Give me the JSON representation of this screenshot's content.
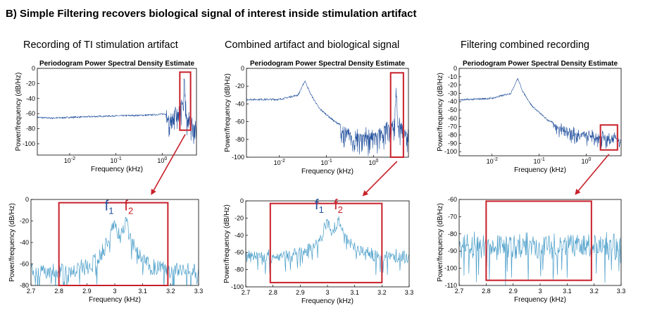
{
  "figure": {
    "heading": "B) Simple Filtering recovers biological signal of interest inside stimulation artifact"
  },
  "columns": [
    {
      "title": "Recording of TI stimulation artifact"
    },
    {
      "title": "Combined artifact and biological signal"
    },
    {
      "title": "Filtering combined recording"
    }
  ],
  "chart_data": [
    {
      "type": "line",
      "panel": "top-1",
      "title": "Periodogram Power Spectral Density Estimate",
      "xlabel": "Frequency (kHz)",
      "ylabel": "Power/frequency (dB/Hz)",
      "xscale": "log",
      "xticks": [
        {
          "v": 0.01,
          "b": "10",
          "e": "-2"
        },
        {
          "v": 0.1,
          "b": "10",
          "e": "-1"
        },
        {
          "v": 1,
          "b": "10",
          "e": "0"
        }
      ],
      "xlim": [
        0.002,
        5.5
      ],
      "yticks": [
        0,
        -20,
        -40,
        -60,
        -80,
        -100
      ],
      "ylim": [
        -115,
        0
      ],
      "series": [
        {
          "color": "#1f4e9c",
          "points": [
            [
              0.002,
              -65
            ],
            [
              0.004,
              -66
            ],
            [
              0.01,
              -65
            ],
            [
              0.03,
              -64
            ],
            [
              0.1,
              -63
            ],
            [
              0.5,
              -62
            ],
            [
              1.5,
              -60
            ],
            [
              2.8,
              -40
            ],
            [
              3.0,
              -12
            ],
            [
              3.1,
              -30
            ],
            [
              3.4,
              -62
            ],
            [
              5.5,
              -68
            ]
          ],
          "noise": {
            "from": 1.2,
            "amp": 35
          }
        }
      ],
      "highlight": {
        "x": [
          2.4,
          4.1
        ],
        "y": [
          -5,
          -82
        ],
        "color": "#c8202a"
      }
    },
    {
      "type": "line",
      "panel": "top-2",
      "title": "Periodogram Power Spectral Density Estimate",
      "xlabel": "Frequency (kHz)",
      "ylabel": "Power/frequency (dB/Hz)",
      "xscale": "log",
      "xticks": [
        {
          "v": 0.01,
          "b": "10",
          "e": "-2"
        },
        {
          "v": 0.1,
          "b": "10",
          "e": "-1"
        },
        {
          "v": 1,
          "b": "10",
          "e": "0"
        }
      ],
      "xlim": [
        0.002,
        5.5
      ],
      "yticks": [
        0,
        -20,
        -40,
        -60,
        -80,
        -100
      ],
      "ylim": [
        -100,
        0
      ],
      "series": [
        {
          "color": "#1f4e9c",
          "points": [
            [
              0.002,
              -35
            ],
            [
              0.01,
              -35
            ],
            [
              0.025,
              -30
            ],
            [
              0.035,
              -14
            ],
            [
              0.045,
              -28
            ],
            [
              0.07,
              -45
            ],
            [
              0.15,
              -60
            ],
            [
              0.4,
              -72
            ],
            [
              1.0,
              -72
            ],
            [
              2.8,
              -55
            ],
            [
              3.0,
              -12
            ],
            [
              3.2,
              -55
            ],
            [
              5.5,
              -72
            ]
          ],
          "noise": {
            "from": 0.2,
            "amp": 28
          }
        }
      ],
      "highlight": {
        "x": [
          2.3,
          4.3
        ],
        "y": [
          -5,
          -100
        ],
        "color": "#c8202a"
      }
    },
    {
      "type": "line",
      "panel": "top-3",
      "title": "Periodogram Power Spectral Density Estimate",
      "xlabel": "Frequency (kHz)",
      "ylabel": "Power/frequency (dB/Hz)",
      "xscale": "log",
      "xticks": [
        {
          "v": 0.01,
          "b": "10",
          "e": "-2"
        },
        {
          "v": 0.1,
          "b": "10",
          "e": "-1"
        },
        {
          "v": 1,
          "b": "10",
          "e": "0"
        }
      ],
      "xlim": [
        0.002,
        5.5
      ],
      "yticks": [
        0,
        -10,
        -20,
        -30,
        -40,
        -50,
        -60,
        -70,
        -80,
        -90,
        -100
      ],
      "ylim": [
        -105,
        0
      ],
      "series": [
        {
          "color": "#1f4e9c",
          "points": [
            [
              0.002,
              -38
            ],
            [
              0.01,
              -36
            ],
            [
              0.025,
              -30
            ],
            [
              0.035,
              -12
            ],
            [
              0.045,
              -28
            ],
            [
              0.07,
              -45
            ],
            [
              0.15,
              -62
            ],
            [
              0.4,
              -74
            ],
            [
              1.0,
              -78
            ],
            [
              3.0,
              -82
            ],
            [
              5.5,
              -85
            ]
          ],
          "noise": {
            "from": 0.2,
            "amp": 16
          }
        }
      ],
      "highlight": {
        "x": [
          2.0,
          4.6
        ],
        "y": [
          -68,
          -98
        ],
        "color": "#c8202a"
      }
    },
    {
      "type": "line",
      "panel": "bottom-1",
      "xlabel": "Frequency (kHz)",
      "ylabel": "Power/frequency (dB/Hz)",
      "xticks": [
        2.7,
        2.8,
        2.9,
        3,
        3.1,
        3.2,
        3.3
      ],
      "xlim": [
        2.7,
        3.3
      ],
      "yticks": [
        0,
        -20,
        -40,
        -60,
        -80
      ],
      "ylim": [
        -80,
        0
      ],
      "series": [
        {
          "color": "#4a9ec9",
          "peaks": [
            3.0,
            3.04
          ],
          "base": -60,
          "peak": -13,
          "noise": 14
        }
      ],
      "highlight": {
        "x": [
          2.8,
          3.19
        ],
        "y": [
          -3,
          -80
        ],
        "color": "#c8202a"
      },
      "annotations": [
        {
          "text": "f",
          "sub": "1",
          "x": 2.98,
          "y": -10,
          "color": "#1f4e9c"
        },
        {
          "text": "f",
          "sub": "2",
          "x": 3.05,
          "y": -10,
          "color": "#c8202a"
        }
      ]
    },
    {
      "type": "line",
      "panel": "bottom-2",
      "xlabel": "Frequency (kHz)",
      "ylabel": "Power/frequency (dB/Hz)",
      "xticks": [
        2.7,
        2.8,
        2.9,
        3,
        3.1,
        3.2,
        3.3
      ],
      "xlim": [
        2.7,
        3.3
      ],
      "yticks": [
        0,
        -20,
        -40,
        -60,
        -80,
        -100
      ],
      "ylim": [
        -100,
        0
      ],
      "series": [
        {
          "color": "#4a9ec9",
          "peaks": [
            3.0,
            3.04
          ],
          "base": -58,
          "peak": -15,
          "noise": 14
        }
      ],
      "highlight": {
        "x": [
          2.79,
          3.2
        ],
        "y": [
          -3,
          -95
        ],
        "color": "#c8202a"
      },
      "annotations": [
        {
          "text": "f",
          "sub": "1",
          "x": 2.97,
          "y": -10,
          "color": "#1f4e9c"
        },
        {
          "text": "f",
          "sub": "2",
          "x": 3.04,
          "y": -10,
          "color": "#c8202a"
        }
      ]
    },
    {
      "type": "line",
      "panel": "bottom-3",
      "xlabel": "Frequency (kHz)",
      "ylabel": "Power/frequency (dB/Hz)",
      "xticks": [
        2.7,
        2.8,
        2.9,
        3,
        3.1,
        3.2,
        3.3
      ],
      "xlim": [
        2.7,
        3.3
      ],
      "yticks": [
        -60,
        -70,
        -80,
        -90,
        -100,
        -110
      ],
      "ylim": [
        -110,
        -60
      ],
      "series": [
        {
          "color": "#4a9ec9",
          "base": -80,
          "noise": 14
        }
      ],
      "highlight": {
        "x": [
          2.8,
          3.19
        ],
        "y": [
          -61,
          -107
        ],
        "color": "#c8202a"
      },
      "annotations": []
    }
  ],
  "colors": {
    "highlight": "#c8202a",
    "arrow": "#c8202a"
  }
}
